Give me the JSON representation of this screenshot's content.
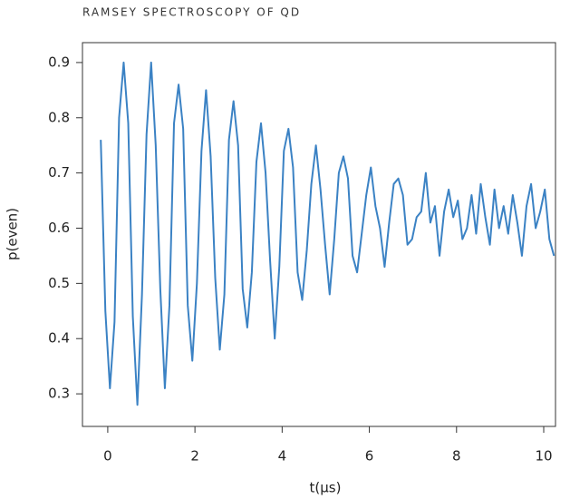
{
  "chart_data": {
    "type": "line",
    "title": "RAMSEY SPECTROSCOPY OF QD",
    "xlabel": "t(μs)",
    "ylabel": "p(even)",
    "xlim": [
      -0.58,
      10.27
    ],
    "ylim": [
      0.241,
      0.936
    ],
    "xticks": [
      0,
      2,
      4,
      6,
      8,
      10
    ],
    "yticks": [
      0.3,
      0.4,
      0.5,
      0.6,
      0.7,
      0.8,
      0.9
    ],
    "series": [
      {
        "name": "p(even)",
        "color": "#3b82c4",
        "x": [
          -0.16,
          -0.055,
          0.05,
          0.155,
          0.26,
          0.365,
          0.47,
          0.575,
          0.68,
          0.785,
          0.89,
          0.995,
          1.1,
          1.205,
          1.31,
          1.415,
          1.52,
          1.625,
          1.73,
          1.835,
          1.94,
          2.045,
          2.15,
          2.255,
          2.36,
          2.465,
          2.57,
          2.675,
          2.78,
          2.885,
          2.99,
          3.095,
          3.2,
          3.305,
          3.41,
          3.515,
          3.62,
          3.725,
          3.83,
          3.935,
          4.04,
          4.145,
          4.25,
          4.355,
          4.46,
          4.565,
          4.67,
          4.775,
          4.88,
          4.985,
          5.09,
          5.195,
          5.3,
          5.405,
          5.51,
          5.615,
          5.72,
          5.825,
          5.93,
          6.035,
          6.14,
          6.245,
          6.35,
          6.455,
          6.56,
          6.665,
          6.77,
          6.875,
          6.98,
          7.085,
          7.19,
          7.295,
          7.4,
          7.505,
          7.61,
          7.715,
          7.82,
          7.925,
          8.03,
          8.135,
          8.24,
          8.345,
          8.45,
          8.555,
          8.66,
          8.765,
          8.87,
          8.975,
          9.08,
          9.185,
          9.29,
          9.395,
          9.5,
          9.605,
          9.71,
          9.815,
          9.92,
          10.025,
          10.13,
          10.235
        ],
        "values": [
          0.76,
          0.45,
          0.31,
          0.43,
          0.8,
          0.9,
          0.79,
          0.44,
          0.28,
          0.48,
          0.77,
          0.9,
          0.75,
          0.49,
          0.31,
          0.46,
          0.79,
          0.86,
          0.78,
          0.46,
          0.36,
          0.5,
          0.74,
          0.85,
          0.73,
          0.51,
          0.38,
          0.48,
          0.76,
          0.83,
          0.75,
          0.49,
          0.42,
          0.52,
          0.72,
          0.79,
          0.7,
          0.54,
          0.4,
          0.53,
          0.74,
          0.78,
          0.71,
          0.52,
          0.47,
          0.56,
          0.68,
          0.75,
          0.67,
          0.57,
          0.48,
          0.58,
          0.7,
          0.73,
          0.69,
          0.55,
          0.52,
          0.59,
          0.66,
          0.71,
          0.64,
          0.6,
          0.53,
          0.61,
          0.68,
          0.69,
          0.66,
          0.57,
          0.58,
          0.62,
          0.63,
          0.7,
          0.61,
          0.64,
          0.55,
          0.63,
          0.67,
          0.62,
          0.65,
          0.58,
          0.6,
          0.66,
          0.59,
          0.68,
          0.62,
          0.57,
          0.67,
          0.6,
          0.64,
          0.59,
          0.66,
          0.61,
          0.55,
          0.64,
          0.68,
          0.6,
          0.63,
          0.67,
          0.58,
          0.55
        ]
      }
    ]
  }
}
